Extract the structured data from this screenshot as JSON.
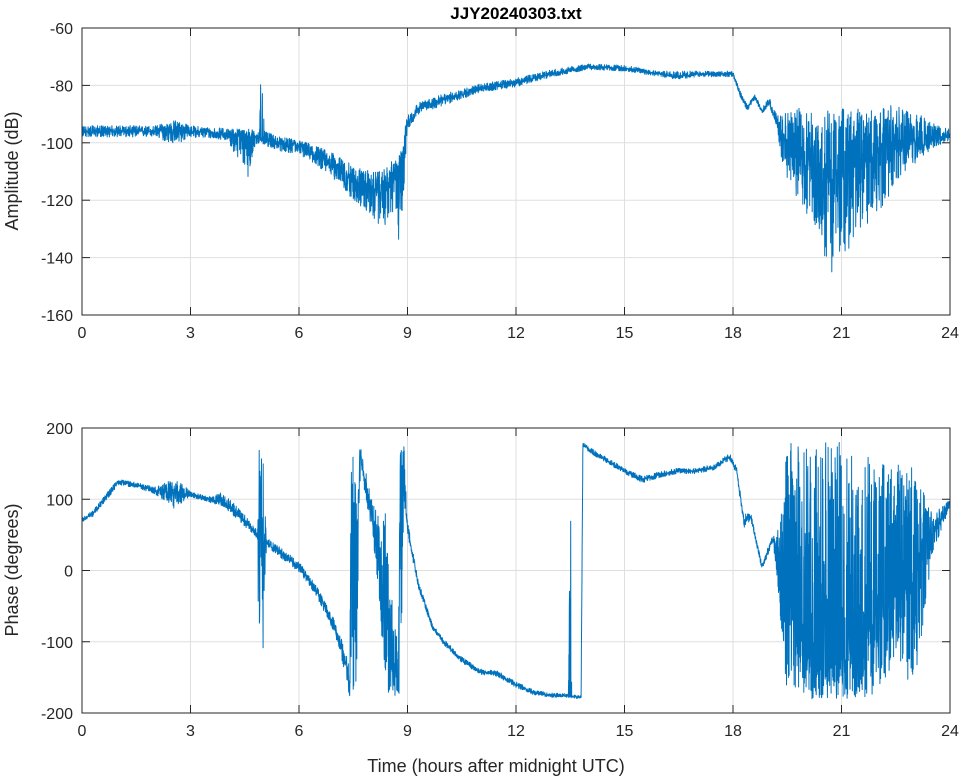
{
  "chart_data": [
    {
      "type": "line",
      "title": "JJY20240303.txt",
      "xlabel": "",
      "ylabel": "Amplitude (dB)",
      "xlim": [
        0,
        24
      ],
      "ylim": [
        -160,
        -60
      ],
      "xticks": [
        0,
        3,
        6,
        9,
        12,
        15,
        18,
        21,
        24
      ],
      "yticks": [
        -160,
        -140,
        -120,
        -100,
        -80,
        -60
      ],
      "grid": true,
      "color": "#0072BD",
      "series_note_fields": [
        "x",
        "y",
        "noise_low",
        "noise_high"
      ],
      "points": [
        [
          0,
          -96,
          -98,
          -94
        ],
        [
          1,
          -96,
          -98,
          -94
        ],
        [
          2,
          -96,
          -98,
          -94
        ],
        [
          2.6,
          -95.5,
          -101,
          -92
        ],
        [
          3,
          -96,
          -98,
          -94
        ],
        [
          4,
          -97,
          -99,
          -95
        ],
        [
          4.6,
          -98,
          -112,
          -95
        ],
        [
          4.9,
          -98,
          -100,
          -96
        ],
        [
          4.95,
          -98,
          -100,
          -75
        ],
        [
          5.05,
          -99,
          -101,
          -96
        ],
        [
          5.5,
          -100,
          -103,
          -98
        ],
        [
          6,
          -101,
          -104,
          -99
        ],
        [
          6.5,
          -104,
          -108,
          -101
        ],
        [
          7,
          -108,
          -113,
          -104
        ],
        [
          7.5,
          -113,
          -120,
          -108
        ],
        [
          8,
          -116,
          -126,
          -110
        ],
        [
          8.3,
          -117,
          -130,
          -110
        ],
        [
          8.6,
          -112,
          -125,
          -106
        ],
        [
          8.8,
          -108,
          -137,
          -104
        ],
        [
          9,
          -93,
          -96,
          -90
        ],
        [
          9.3,
          -88,
          -90,
          -86
        ],
        [
          10,
          -85,
          -87,
          -83
        ],
        [
          11,
          -81,
          -82.5,
          -79.5
        ],
        [
          12,
          -79,
          -80.5,
          -77.5
        ],
        [
          13,
          -76,
          -77,
          -74.5
        ],
        [
          14,
          -73.5,
          -74.5,
          -72.5
        ],
        [
          15,
          -74,
          -75,
          -73
        ],
        [
          16,
          -76,
          -77,
          -75
        ],
        [
          16.5,
          -77,
          -78,
          -75
        ],
        [
          17,
          -76,
          -77,
          -75
        ],
        [
          18,
          -76,
          -77,
          -75
        ],
        [
          18.2,
          -83,
          -84,
          -82
        ],
        [
          18.4,
          -88,
          -89,
          -87
        ],
        [
          18.6,
          -84,
          -85,
          -83
        ],
        [
          18.8,
          -89,
          -90,
          -88
        ],
        [
          19,
          -86,
          -87,
          -84
        ],
        [
          19.2,
          -92,
          -94,
          -90
        ],
        [
          19.4,
          -100,
          -110,
          -90
        ],
        [
          19.8,
          -102,
          -120,
          -88
        ],
        [
          20.3,
          -108,
          -130,
          -88
        ],
        [
          20.7,
          -112,
          -147,
          -88
        ],
        [
          21,
          -110,
          -140,
          -88
        ],
        [
          21.5,
          -106,
          -132,
          -88
        ],
        [
          22,
          -102,
          -125,
          -88
        ],
        [
          22.5,
          -100,
          -115,
          -86
        ],
        [
          23,
          -99,
          -108,
          -88
        ],
        [
          23.5,
          -98,
          -102,
          -92
        ],
        [
          24,
          -97,
          -99,
          -95
        ]
      ]
    },
    {
      "type": "line",
      "title": "",
      "xlabel": "Time (hours after midnight UTC)",
      "ylabel": "Phase (degrees)",
      "xlim": [
        0,
        24
      ],
      "ylim": [
        -200,
        200
      ],
      "xticks": [
        0,
        3,
        6,
        9,
        12,
        15,
        18,
        21,
        24
      ],
      "yticks": [
        -200,
        -100,
        0,
        100,
        200
      ],
      "grid": true,
      "color": "#0072BD",
      "series_note_fields": [
        "x",
        "y",
        "noise_low",
        "noise_high"
      ],
      "points": [
        [
          0,
          70,
          68,
          75
        ],
        [
          0.3,
          80,
          76,
          84
        ],
        [
          0.7,
          105,
          100,
          110
        ],
        [
          1,
          125,
          120,
          128
        ],
        [
          1.5,
          120,
          116,
          124
        ],
        [
          2,
          113,
          108,
          117
        ],
        [
          2.6,
          110,
          85,
          130
        ],
        [
          3,
          107,
          103,
          111
        ],
        [
          3.5,
          100,
          96,
          104
        ],
        [
          3.9,
          95,
          90,
          110
        ],
        [
          4.5,
          70,
          62,
          78
        ],
        [
          4.85,
          50,
          44,
          56
        ],
        [
          4.9,
          50,
          -175,
          170
        ],
        [
          5,
          45,
          -120,
          165
        ],
        [
          5.1,
          40,
          34,
          46
        ],
        [
          5.5,
          25,
          18,
          32
        ],
        [
          6,
          5,
          -2,
          12
        ],
        [
          6.5,
          -30,
          -38,
          -22
        ],
        [
          7,
          -80,
          -90,
          -70
        ],
        [
          7.3,
          -130,
          -150,
          -115
        ],
        [
          7.4,
          -165,
          -178,
          -140
        ],
        [
          7.45,
          0,
          -178,
          178
        ],
        [
          7.6,
          0,
          -178,
          178
        ],
        [
          7.7,
          160,
          140,
          178
        ],
        [
          8,
          80,
          60,
          100
        ],
        [
          8.2,
          0,
          -30,
          80
        ],
        [
          8.4,
          -80,
          -170,
          80
        ],
        [
          8.6,
          -120,
          -175,
          -60
        ],
        [
          8.75,
          -160,
          -178,
          -100
        ],
        [
          8.8,
          150,
          -170,
          178
        ],
        [
          8.9,
          110,
          90,
          178
        ],
        [
          9,
          60,
          50,
          70
        ],
        [
          9.3,
          -20,
          -25,
          -15
        ],
        [
          9.7,
          -80,
          -84,
          -76
        ],
        [
          10,
          -100,
          -104,
          -96
        ],
        [
          10.5,
          -125,
          -129,
          -121
        ],
        [
          11,
          -142,
          -146,
          -138
        ],
        [
          11.5,
          -145,
          -149,
          -141
        ],
        [
          12,
          -160,
          -164,
          -156
        ],
        [
          12.5,
          -172,
          -175,
          -168
        ],
        [
          13,
          -175,
          -178,
          -172
        ],
        [
          13.45,
          -176,
          -178,
          -173
        ],
        [
          13.5,
          -176,
          -178,
          180
        ],
        [
          13.55,
          -177,
          -179,
          -174
        ],
        [
          13.8,
          -178,
          -180,
          -175
        ],
        [
          13.85,
          178,
          175,
          180
        ],
        [
          14,
          170,
          166,
          174
        ],
        [
          14.5,
          155,
          151,
          159
        ],
        [
          15,
          140,
          136,
          144
        ],
        [
          15.5,
          128,
          123,
          132
        ],
        [
          16,
          135,
          131,
          139
        ],
        [
          16.5,
          140,
          136,
          144
        ],
        [
          17,
          140,
          136,
          144
        ],
        [
          17.5,
          145,
          141,
          149
        ],
        [
          17.9,
          160,
          155,
          165
        ],
        [
          18.1,
          140,
          135,
          145
        ],
        [
          18.3,
          70,
          60,
          80
        ],
        [
          18.5,
          75,
          70,
          80
        ],
        [
          18.8,
          5,
          0,
          10
        ],
        [
          19.1,
          45,
          40,
          50
        ],
        [
          19.3,
          0,
          -60,
          60
        ],
        [
          19.5,
          -40,
          -180,
          180
        ],
        [
          20,
          -80,
          -180,
          180
        ],
        [
          20.5,
          -110,
          -180,
          180
        ],
        [
          21,
          -110,
          -180,
          180
        ],
        [
          21.5,
          -90,
          -180,
          180
        ],
        [
          22,
          -60,
          -175,
          150
        ],
        [
          22.5,
          -25,
          -120,
          150
        ],
        [
          23,
          10,
          -175,
          150
        ],
        [
          23.5,
          50,
          20,
          80
        ],
        [
          24,
          95,
          88,
          100
        ]
      ]
    }
  ]
}
